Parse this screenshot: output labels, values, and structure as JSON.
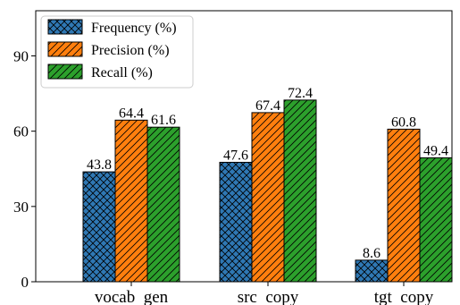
{
  "chart_data": {
    "type": "bar",
    "categories": [
      "vocab  gen",
      "src  copy",
      "tgt  copy"
    ],
    "series": [
      {
        "name": "Frequency (%)",
        "values": [
          43.8,
          47.6,
          8.6
        ],
        "color": "#2f78b4",
        "hatch": "crosshatch"
      },
      {
        "name": "Precision (%)",
        "values": [
          64.4,
          67.4,
          60.8
        ],
        "color": "#ff7f0e",
        "hatch": "diagonal"
      },
      {
        "name": "Recall (%)",
        "values": [
          61.6,
          72.4,
          49.4
        ],
        "color": "#2ca02c",
        "hatch": "diagonal"
      }
    ],
    "value_labels": [
      [
        "43.8",
        "64.4",
        "61.6"
      ],
      [
        "47.6",
        "67.4",
        "72.4"
      ],
      [
        "8.6",
        "60.8",
        "49.4"
      ]
    ],
    "yticks": [
      0,
      30,
      60,
      90
    ],
    "ytick_labels": [
      "0",
      "30",
      "60",
      "90"
    ],
    "ylim": [
      0,
      108
    ],
    "title": "",
    "xlabel": "",
    "ylabel": "",
    "legend_position": "top-left",
    "grid": false
  }
}
